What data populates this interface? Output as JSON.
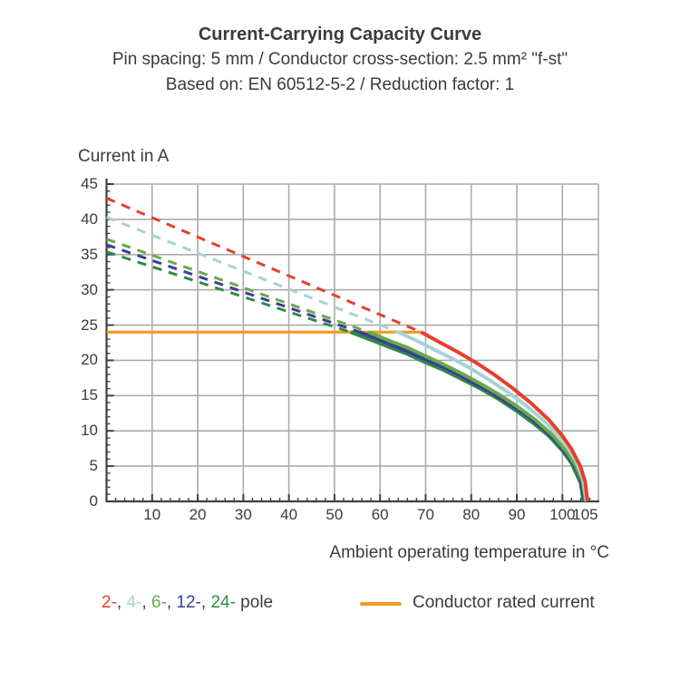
{
  "header": {
    "title": "Current-Carrying Capacity Curve",
    "subtitle1": "Pin spacing: 5 mm / Conductor cross-section: 2.5 mm² \"f-st\"",
    "subtitle2": "Based on: EN 60512-5-2 / Reduction factor: 1"
  },
  "colors": {
    "text": "#3b3b3b",
    "grid": "#ababab",
    "axis": "#404040",
    "background": "#ffffff"
  },
  "legend": {
    "pole_items": [
      {
        "label": "2-",
        "color": "#e5402a"
      },
      {
        "label": "4-",
        "color": "#a6d3d5"
      },
      {
        "label": "6-",
        "color": "#66ab4a"
      },
      {
        "label": "12-",
        "color": "#3e3c9a"
      },
      {
        "label": "24-",
        "color": "#2f8b43"
      }
    ],
    "separator": ", ",
    "suffix": " pole",
    "rated_label": "Conductor rated current",
    "rated_color": "#f29a1e"
  },
  "chart_data": {
    "type": "line",
    "title": "Current-Carrying Capacity Curve",
    "xlabel": "Ambient operating temperature in °C",
    "ylabel": "Current in A",
    "xlim": [
      0,
      108
    ],
    "ylim": [
      0,
      45
    ],
    "x_major_ticks": [
      10,
      20,
      30,
      40,
      50,
      60,
      70,
      80,
      90,
      100,
      105
    ],
    "y_major_ticks": [
      0,
      5,
      10,
      15,
      20,
      25,
      30,
      35,
      40,
      45
    ],
    "x_minor_step": 2,
    "y_minor_step": 1,
    "grid": true,
    "legend_position": "bottom",
    "rated_current": {
      "name": "Conductor rated current",
      "color": "#f29a1e",
      "y": 24,
      "x_start": 0,
      "x_end": 69
    },
    "series": [
      {
        "name": "2-pole",
        "color": "#e5402a",
        "dashed": [
          [
            0,
            43
          ],
          [
            69,
            24
          ]
        ],
        "solid": [
          [
            69,
            24
          ],
          [
            73,
            22.6
          ],
          [
            77,
            21.2
          ],
          [
            81,
            19.7
          ],
          [
            85,
            18.0
          ],
          [
            89,
            16.1
          ],
          [
            93,
            14.0
          ],
          [
            97,
            11.6
          ],
          [
            100,
            9.3
          ],
          [
            102,
            7.4
          ],
          [
            104,
            4.9
          ],
          [
            105,
            2.8
          ],
          [
            105.5,
            0
          ]
        ]
      },
      {
        "name": "4-pole",
        "color": "#a6d3d5",
        "dashed": [
          [
            0,
            40.3
          ],
          [
            64,
            24
          ]
        ],
        "solid": [
          [
            64,
            24
          ],
          [
            68,
            22.8
          ],
          [
            72,
            21.5
          ],
          [
            76,
            20.2
          ],
          [
            80,
            18.8
          ],
          [
            84,
            17.2
          ],
          [
            88,
            15.5
          ],
          [
            92,
            13.6
          ],
          [
            96,
            11.4
          ],
          [
            99,
            9.4
          ],
          [
            101,
            7.8
          ],
          [
            103,
            5.7
          ],
          [
            104.5,
            3.3
          ],
          [
            105.3,
            0
          ]
        ]
      },
      {
        "name": "6-pole",
        "color": "#66ab4a",
        "dashed": [
          [
            0,
            37.2
          ],
          [
            57.5,
            24
          ]
        ],
        "solid": [
          [
            57.5,
            24
          ],
          [
            62,
            22.8
          ],
          [
            66,
            21.8
          ],
          [
            70,
            20.6
          ],
          [
            74,
            19.4
          ],
          [
            78,
            18.1
          ],
          [
            82,
            16.7
          ],
          [
            86,
            15.2
          ],
          [
            90,
            13.5
          ],
          [
            94,
            11.6
          ],
          [
            98,
            9.3
          ],
          [
            101,
            7.0
          ],
          [
            103,
            5.0
          ],
          [
            104.5,
            2.7
          ],
          [
            105.1,
            0
          ]
        ]
      },
      {
        "name": "12-pole",
        "color": "#3e3c9a",
        "dashed": [
          [
            0,
            36.4
          ],
          [
            55.5,
            24
          ]
        ],
        "solid": [
          [
            55.5,
            24
          ],
          [
            60,
            22.9
          ],
          [
            64,
            21.8
          ],
          [
            68,
            20.7
          ],
          [
            72,
            19.6
          ],
          [
            76,
            18.4
          ],
          [
            80,
            17.0
          ],
          [
            84,
            15.6
          ],
          [
            88,
            14.0
          ],
          [
            92,
            12.3
          ],
          [
            96,
            10.2
          ],
          [
            99,
            8.3
          ],
          [
            101,
            6.7
          ],
          [
            103,
            4.7
          ],
          [
            104,
            3.2
          ],
          [
            104.9,
            0
          ]
        ]
      },
      {
        "name": "24-pole",
        "color": "#2f8b43",
        "dashed": [
          [
            0,
            35.4
          ],
          [
            53.5,
            24
          ]
        ],
        "solid": [
          [
            53.5,
            24
          ],
          [
            58,
            22.9
          ],
          [
            62,
            21.9
          ],
          [
            66,
            20.9
          ],
          [
            70,
            19.7
          ],
          [
            74,
            18.6
          ],
          [
            78,
            17.3
          ],
          [
            82,
            16.0
          ],
          [
            86,
            14.5
          ],
          [
            90,
            12.8
          ],
          [
            94,
            10.9
          ],
          [
            97,
            9.3
          ],
          [
            100,
            7.2
          ],
          [
            102,
            5.4
          ],
          [
            104,
            2.6
          ],
          [
            104.6,
            0
          ]
        ]
      }
    ]
  }
}
